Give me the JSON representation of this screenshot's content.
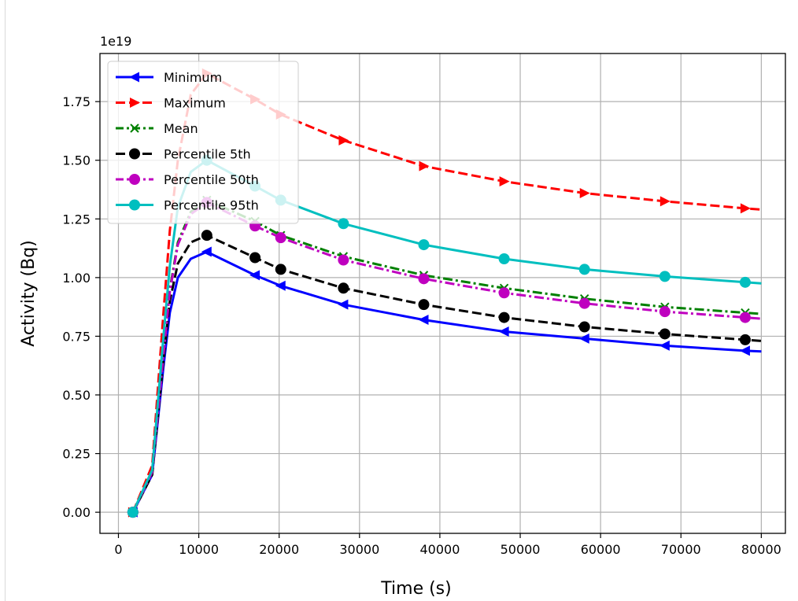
{
  "chart_data": {
    "type": "line",
    "title": "",
    "xlabel": "Time (s)",
    "ylabel": "Activity (Bq)",
    "y_offset_label": "1e19",
    "y_scale": 1e+19,
    "xlim": [
      -2300,
      83000
    ],
    "ylim": [
      -0.09,
      1.955
    ],
    "x_ticks": [
      0,
      10000,
      20000,
      30000,
      40000,
      50000,
      60000,
      70000,
      80000
    ],
    "x_tick_labels": [
      "0",
      "10000",
      "20000",
      "30000",
      "40000",
      "50000",
      "60000",
      "70000",
      "80000"
    ],
    "y_ticks": [
      0,
      0.25,
      0.5,
      0.75,
      1.0,
      1.25,
      1.5,
      1.75
    ],
    "y_tick_labels": [
      "0.00",
      "0.25",
      "0.50",
      "0.75",
      "1.00",
      "1.25",
      "1.50",
      "1.75"
    ],
    "grid": true,
    "legend_position": "top-left",
    "x": [
      1800,
      4200,
      5600,
      6400,
      7400,
      9000,
      11000,
      17000,
      20200,
      28000,
      38000,
      48000,
      58000,
      68000,
      78000,
      80000
    ],
    "series": [
      {
        "name": "Minimum",
        "color": "#0000ff",
        "dash": "solid",
        "marker": "triangle-left",
        "values": [
          0.0,
          0.16,
          0.62,
          0.85,
          1.0,
          1.08,
          1.11,
          1.01,
          0.965,
          0.885,
          0.82,
          0.77,
          0.74,
          0.71,
          0.688,
          0.685
        ]
      },
      {
        "name": "Maximum",
        "color": "#ff0000",
        "dash": "dashed",
        "marker": "triangle-right",
        "values": [
          0.0,
          0.2,
          0.85,
          1.2,
          1.5,
          1.78,
          1.87,
          1.76,
          1.695,
          1.585,
          1.475,
          1.41,
          1.36,
          1.325,
          1.295,
          1.29
        ]
      },
      {
        "name": "Mean",
        "color": "#008000",
        "dash": "dashdot",
        "marker": "x",
        "values": [
          0.0,
          0.17,
          0.68,
          0.95,
          1.15,
          1.28,
          1.33,
          1.24,
          1.18,
          1.09,
          1.01,
          0.955,
          0.91,
          0.875,
          0.85,
          0.845
        ]
      },
      {
        "name": "Percentile 5th",
        "color": "#000000",
        "dash": "dashed",
        "marker": "circle",
        "values": [
          0.0,
          0.16,
          0.65,
          0.9,
          1.06,
          1.15,
          1.18,
          1.085,
          1.035,
          0.955,
          0.885,
          0.83,
          0.79,
          0.76,
          0.735,
          0.73
        ]
      },
      {
        "name": "Percentile 50th",
        "color": "#bf00bf",
        "dash": "dashdot",
        "marker": "circle",
        "values": [
          0.0,
          0.17,
          0.67,
          0.94,
          1.14,
          1.27,
          1.32,
          1.22,
          1.17,
          1.075,
          0.995,
          0.935,
          0.89,
          0.855,
          0.83,
          0.825
        ]
      },
      {
        "name": "Percentile 95th",
        "color": "#00bfbf",
        "dash": "solid",
        "marker": "circle",
        "values": [
          0.0,
          0.18,
          0.75,
          1.05,
          1.3,
          1.45,
          1.5,
          1.39,
          1.33,
          1.23,
          1.14,
          1.08,
          1.035,
          1.005,
          0.98,
          0.975
        ]
      }
    ]
  }
}
